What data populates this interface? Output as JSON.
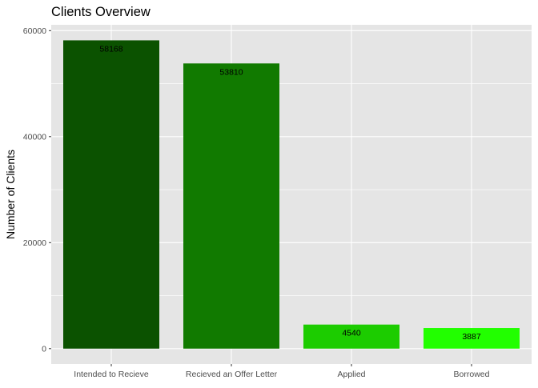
{
  "chart_data": {
    "type": "bar",
    "title": "Clients Overview",
    "xlabel": "",
    "ylabel": "Number of Clients",
    "categories": [
      "Intended to Recieve",
      "Recieved an Offer Letter",
      "Applied",
      "Borrowed"
    ],
    "values": [
      58168,
      53810,
      4540,
      3887
    ],
    "data_labels": [
      "58168",
      "53810",
      "4540",
      "3887"
    ],
    "bar_colors": [
      "#0b5200",
      "#117a00",
      "#1ccc00",
      "#22ff00"
    ],
    "ylim": [
      -2900,
      61100
    ],
    "y_ticks": [
      0,
      20000,
      40000,
      60000
    ],
    "y_tick_labels": [
      "0",
      "20000",
      "40000",
      "60000"
    ],
    "grid": true,
    "legend": "none",
    "panel_background": "#e5e5e5",
    "grid_color": "#ffffff"
  }
}
